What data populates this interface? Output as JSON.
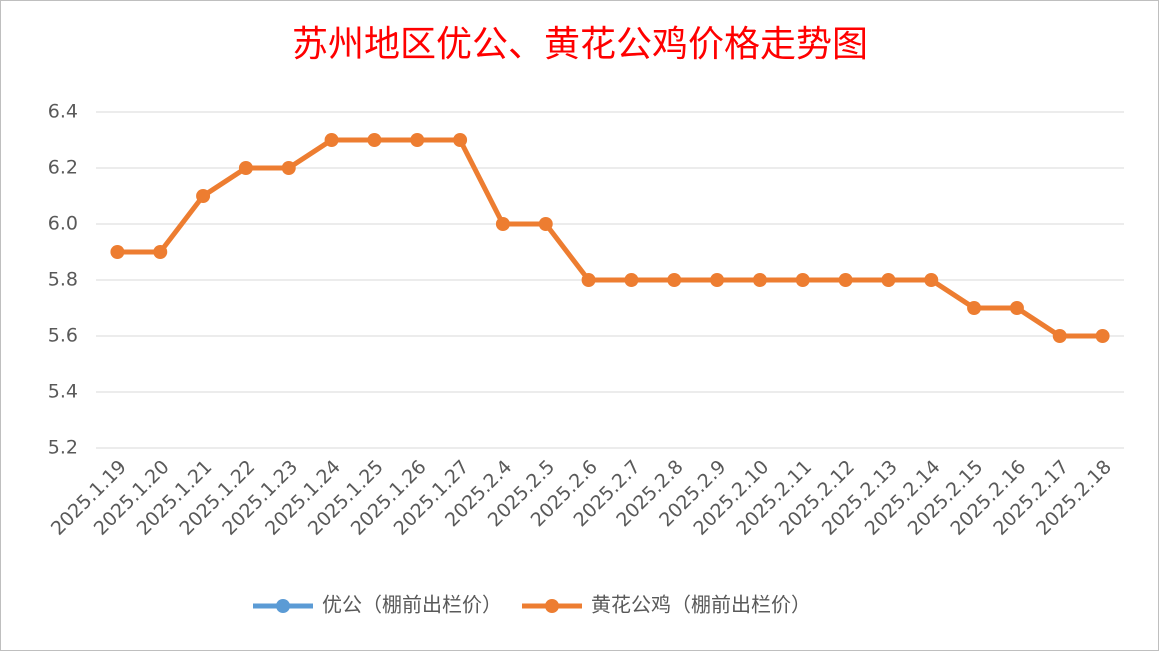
{
  "chart_data": {
    "type": "line",
    "title": "苏州地区优公、黄花公鸡价格走势图",
    "categories": [
      "2025.1.19",
      "2025.1.20",
      "2025.1.21",
      "2025.1.22",
      "2025.1.23",
      "2025.1.24",
      "2025.1.25",
      "2025.1.26",
      "2025.1.27",
      "2025.2.4",
      "2025.2.5",
      "2025.2.6",
      "2025.2.7",
      "2025.2.8",
      "2025.2.9",
      "2025.2.10",
      "2025.2.11",
      "2025.2.12",
      "2025.2.13",
      "2025.2.14",
      "2025.2.15",
      "2025.2.16",
      "2025.2.17",
      "2025.2.18"
    ],
    "series": [
      {
        "name": "优公（棚前出栏价）",
        "color": "#5b9bd5",
        "values": [
          null,
          null,
          null,
          null,
          null,
          null,
          null,
          null,
          null,
          null,
          null,
          null,
          null,
          null,
          null,
          null,
          null,
          null,
          null,
          null,
          null,
          null,
          null,
          null
        ]
      },
      {
        "name": "黄花公鸡（棚前出栏价）",
        "color": "#ed7d31",
        "values": [
          5.9,
          5.9,
          6.1,
          6.2,
          6.2,
          6.3,
          6.3,
          6.3,
          6.3,
          6.0,
          6.0,
          5.8,
          5.8,
          5.8,
          5.8,
          5.8,
          5.8,
          5.8,
          5.8,
          5.8,
          5.7,
          5.7,
          5.6,
          5.6
        ]
      }
    ],
    "ylim": [
      5.2,
      6.4
    ],
    "yticks": [
      5.2,
      5.4,
      5.6,
      5.8,
      {
        "value": 6,
        "label": "6.0"
      },
      6.2,
      6.4
    ],
    "grid": true,
    "legend": "bottom",
    "title_color": "#ff0000"
  }
}
